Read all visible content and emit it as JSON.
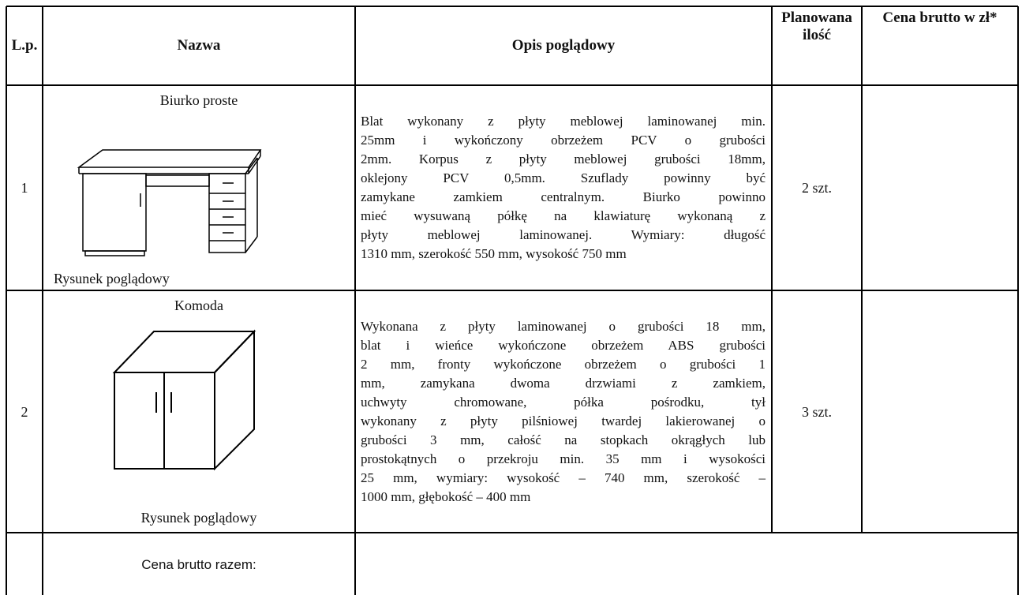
{
  "table": {
    "header": [
      "L.p.",
      "Nazwa",
      "Opis poglądowy",
      "Planowana ilość",
      "Cena brutto w zł*"
    ],
    "rows": [
      {
        "lp": "1",
        "name": "Biurko proste",
        "caption": "Rysunek poglądowy",
        "description": [
          "Blat wykonany z płyty meblowej laminowanej min.",
          "25mm i wykończony obrzeżem PCV  o grubości",
          "2mm. Korpus z płyty meblowej grubości 18mm,",
          "oklejony PCV 0,5mm. Szuflady powinny być",
          "zamykane zamkiem centralnym. Biurko powinno",
          "mieć wysuwaną półkę na klawiaturę wykonaną z",
          "płyty meblowej laminowanej.  Wymiary: długość",
          "1310 mm, szerokość 550 mm, wysokość 750 mm"
        ],
        "quantity": "2 szt."
      },
      {
        "lp": "2",
        "name": "Komoda",
        "caption": "Rysunek poglądowy",
        "description": [
          "Wykonana z płyty laminowanej o grubości 18 mm,",
          "blat i wieńce wykończone obrzeżem ABS grubości",
          "2 mm, fronty wykończone obrzeżem o grubości 1",
          "mm, zamykana dwoma drzwiami z zamkiem,",
          "uchwyty chromowane, półka pośrodku, tył",
          "wykonany z płyty pilśniowej twardej lakierowanej o",
          "grubości 3 mm, całość na stopkach okrągłych lub",
          "prostokątnych o przekroju min. 35 mm i wysokości",
          "25 mm, wymiary: wysokość – 740 mm, szerokość –",
          "1000 mm, głębokość – 400 mm"
        ],
        "quantity": "3 szt."
      }
    ],
    "total_label": "Cena brutto razem:"
  }
}
